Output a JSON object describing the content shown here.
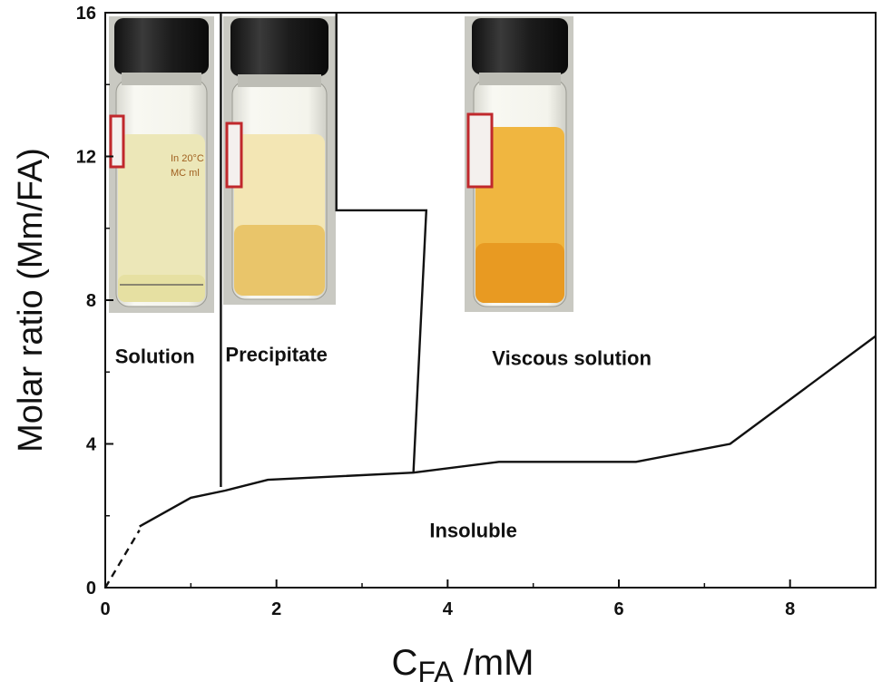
{
  "chart_data": {
    "type": "line",
    "title": "",
    "xlabel": {
      "main": "C",
      "sub": "FA",
      "unit": " /mM"
    },
    "ylabel": "Molar ratio (Mm/FA)",
    "xlim": [
      0,
      9
    ],
    "ylim": [
      0,
      16
    ],
    "x_ticks": [
      0,
      2,
      4,
      6,
      8
    ],
    "y_ticks": [
      0,
      4,
      8,
      12,
      16
    ],
    "x_tick_labels": [
      "0",
      "2",
      "4",
      "6",
      "8"
    ],
    "y_tick_labels": [
      "0",
      "4",
      "8",
      "12",
      "16"
    ],
    "grid": false,
    "series": [
      {
        "style": "dashed",
        "points": [
          [
            0.0,
            0.0
          ],
          [
            0.4,
            1.6
          ]
        ]
      },
      {
        "style": "solid",
        "points": [
          [
            0.4,
            1.7
          ],
          [
            1.0,
            2.5
          ],
          [
            1.4,
            2.7
          ],
          [
            1.9,
            3.0
          ],
          [
            3.6,
            3.2
          ],
          [
            4.6,
            3.5
          ],
          [
            6.2,
            3.5
          ],
          [
            7.3,
            4.0
          ],
          [
            9.0,
            7.0
          ]
        ]
      },
      {
        "style": "solid",
        "points": [
          [
            1.35,
            2.8
          ],
          [
            1.35,
            16.0
          ]
        ]
      },
      {
        "style": "solid",
        "points": [
          [
            2.7,
            16.0
          ],
          [
            2.7,
            10.5
          ],
          [
            3.75,
            10.5
          ],
          [
            3.6,
            3.2
          ]
        ]
      }
    ],
    "regions": [
      {
        "label": "Solution",
        "x": 0.58,
        "y": 6.25
      },
      {
        "label": "Precipitate",
        "x": 2.0,
        "y": 6.3
      },
      {
        "label": "Viscous solution",
        "x": 5.45,
        "y": 6.2
      },
      {
        "label": "Insoluble",
        "x": 4.3,
        "y": 1.4
      }
    ],
    "photos": [
      {
        "name": "vial-solution",
        "liquid": "#ece7b8",
        "liquid_low": "#e6e0a2",
        "printed_text": [
          "In 20°C",
          "MC ml"
        ]
      },
      {
        "name": "vial-precipitate",
        "liquid": "#f3e6b4",
        "liquid_low": "#e9c56a",
        "printed_text": []
      },
      {
        "name": "vial-viscous",
        "liquid": "#f0b640",
        "liquid_low": "#e89a22",
        "printed_text": []
      }
    ]
  }
}
